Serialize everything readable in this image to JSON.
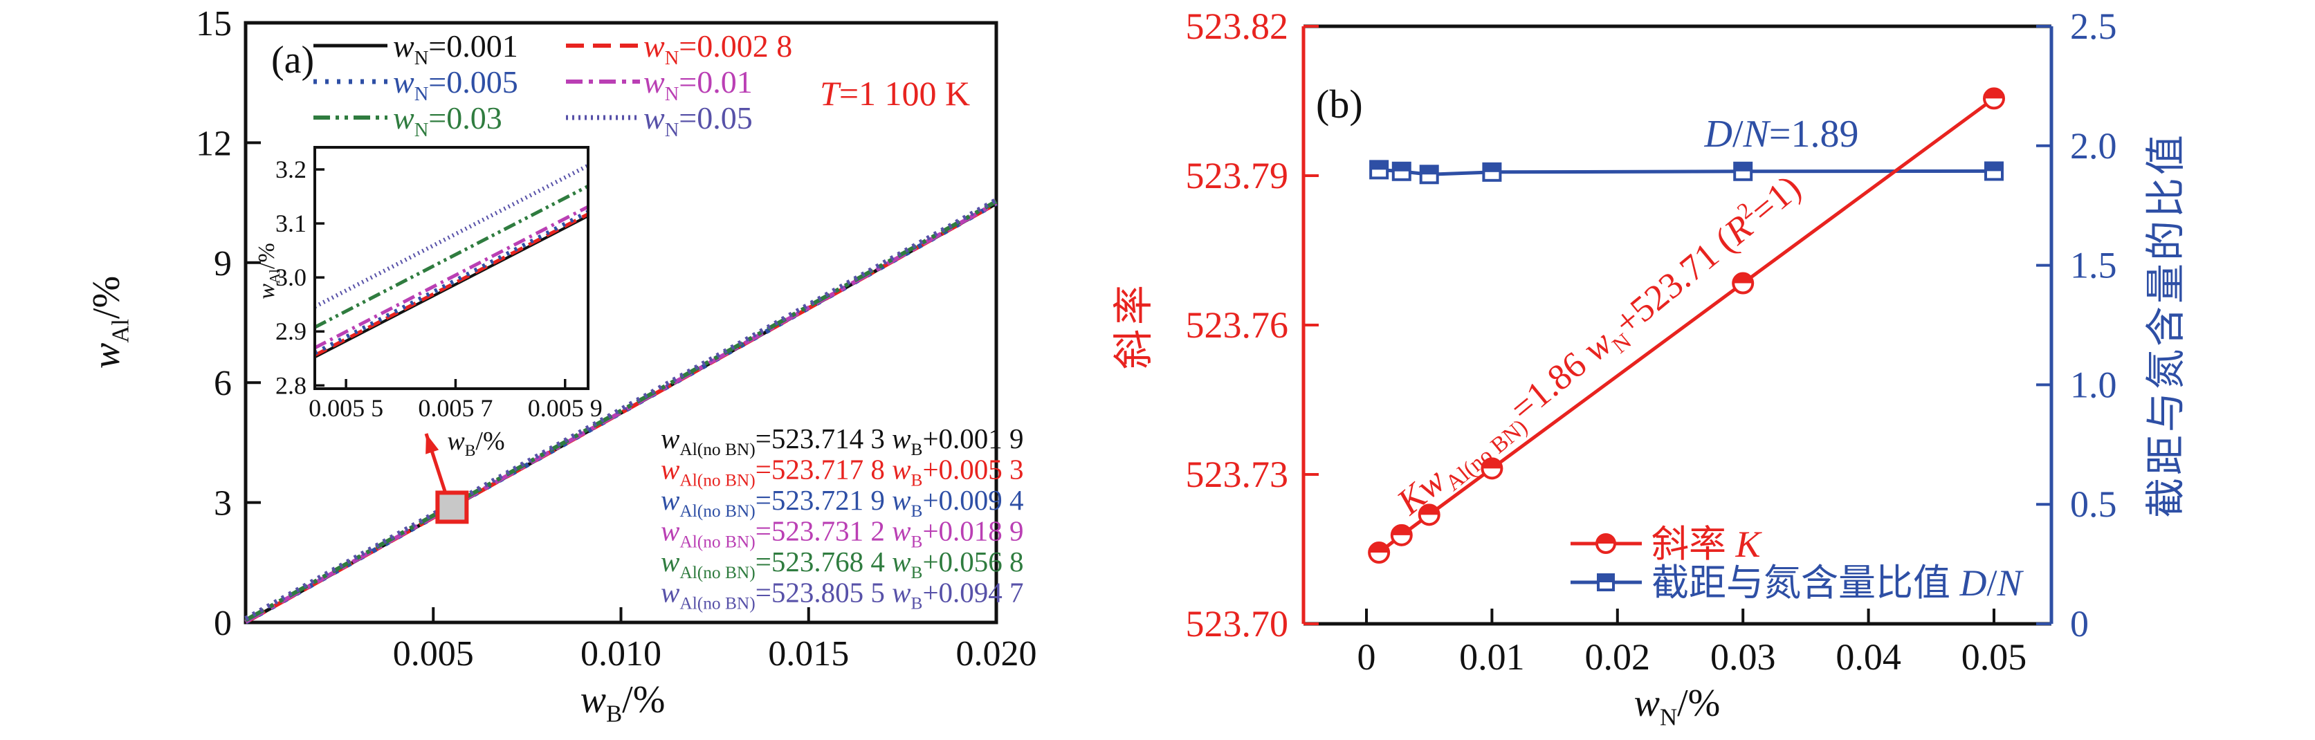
{
  "figure_background": "#ffffff",
  "chart_data": [
    {
      "id": "a",
      "type": "line",
      "panel_label": "(a)",
      "xlabel": "*w*_{B}/%",
      "ylabel": "*w*_{Al}/%",
      "xlim": [
        0,
        0.02
      ],
      "ylim": [
        0,
        15
      ],
      "xticks": [
        {
          "v": 0.005,
          "l": "0.005"
        },
        {
          "v": 0.01,
          "l": "0.010"
        },
        {
          "v": 0.015,
          "l": "0.015"
        },
        {
          "v": 0.02,
          "l": "0.020"
        }
      ],
      "yticks": [
        {
          "v": 0,
          "l": "0"
        },
        {
          "v": 3,
          "l": "3"
        },
        {
          "v": 6,
          "l": "6"
        },
        {
          "v": 9,
          "l": "9"
        },
        {
          "v": 12,
          "l": "12"
        },
        {
          "v": 15,
          "l": "15"
        }
      ],
      "temperature_note": "*T*=1 100 K",
      "temperature_color": "#e8231f",
      "legend_position": "top-left",
      "series": [
        {
          "name": "*w*_{N}=0.001",
          "color": "#111111",
          "dash": "solid",
          "slope": 523.7143,
          "intercept": 0.0019,
          "equation": "*w*_{Al(no BN)}=523.714 3 *w*_{B}+0.001 9"
        },
        {
          "name": "*w*_{N}=0.002 8",
          "color": "#e8231f",
          "dash": "dashed",
          "slope": 523.7178,
          "intercept": 0.0053,
          "equation": "*w*_{Al(no BN)}=523.717 8 *w*_{B}+0.005 3"
        },
        {
          "name": "*w*_{N}=0.005",
          "color": "#2e4fa5",
          "dash": "dotted",
          "slope": 523.7219,
          "intercept": 0.0094,
          "equation": "*w*_{Al(no BN)}=523.721 9 *w*_{B}+0.009 4"
        },
        {
          "name": "*w*_{N}=0.01",
          "color": "#ba3fb4",
          "dash": "dashdot",
          "slope": 523.7312,
          "intercept": 0.0189,
          "equation": "*w*_{Al(no BN)}=523.731 2 *w*_{B}+0.018 9"
        },
        {
          "name": "*w*_{N}=0.03",
          "color": "#2f7c3f",
          "dash": "dashdotdot",
          "slope": 523.7684,
          "intercept": 0.0568,
          "equation": "*w*_{Al(no BN)}=523.768 4 *w*_{B}+0.056 8"
        },
        {
          "name": "*w*_{N}=0.05",
          "color": "#5751a8",
          "dash": "finedot",
          "slope": 523.8055,
          "intercept": 0.0947,
          "equation": "*w*_{Al(no BN)}=523.805 5 *w*_{B}+0.094 7"
        }
      ],
      "inset": {
        "xlabel": "*w*_{B}/%",
        "ylabel": "*w*_{Al}/%",
        "xlim": [
          0.005443,
          0.005942
        ],
        "ylim": [
          2.794,
          3.241
        ],
        "xticks": [
          {
            "v": 0.0055,
            "l": "0.005 5"
          },
          {
            "v": 0.0057,
            "l": "0.005 7"
          },
          {
            "v": 0.0059,
            "l": "0.005 9"
          }
        ],
        "yticks": [
          {
            "v": 2.8,
            "l": "2.8"
          },
          {
            "v": 2.9,
            "l": "2.9"
          },
          {
            "v": 3.0,
            "l": "3.0"
          },
          {
            "v": 3.1,
            "l": "3.1"
          },
          {
            "v": 3.2,
            "l": "3.2"
          }
        ]
      },
      "zoom_marker": {
        "x_value": 0.0055,
        "fill": "#c8c8c8",
        "border": "#e8231f"
      }
    },
    {
      "id": "b",
      "type": "line-dual-axis",
      "panel_label": "(b)",
      "xlabel": "*w*_{N}/%",
      "x": [
        0.001,
        0.0028,
        0.005,
        0.01,
        0.03,
        0.05
      ],
      "xticks": [
        {
          "v": 0,
          "l": "0"
        },
        {
          "v": 0.01,
          "l": "0.01"
        },
        {
          "v": 0.02,
          "l": "0.02"
        },
        {
          "v": 0.03,
          "l": "0.03"
        },
        {
          "v": 0.04,
          "l": "0.04"
        },
        {
          "v": 0.05,
          "l": "0.05"
        }
      ],
      "left_axis": {
        "label": "斜率",
        "color": "#e8231f",
        "lim": [
          523.7,
          523.82
        ],
        "ticks": [
          {
            "v": 523.7,
            "l": "523.70"
          },
          {
            "v": 523.73,
            "l": "523.73"
          },
          {
            "v": 523.76,
            "l": "523.76"
          },
          {
            "v": 523.79,
            "l": "523.79"
          },
          {
            "v": 523.82,
            "l": "523.82"
          }
        ]
      },
      "right_axis": {
        "label": "截距与氮含量的比值",
        "color": "#2e4fa5",
        "lim": [
          0,
          2.5
        ],
        "ticks": [
          {
            "v": 0,
            "l": "0"
          },
          {
            "v": 0.5,
            "l": "0.5"
          },
          {
            "v": 1.0,
            "l": "1.0"
          },
          {
            "v": 1.5,
            "l": "1.5"
          },
          {
            "v": 2.0,
            "l": "2.0"
          },
          {
            "v": 2.5,
            "l": "2.5"
          }
        ]
      },
      "series": [
        {
          "name": "斜率 *K*",
          "axis": "left",
          "color": "#e8231f",
          "marker": "half-circle",
          "values": [
            523.7143,
            523.7178,
            523.7219,
            523.7312,
            523.7684,
            523.8055
          ]
        },
        {
          "name": "截距与氮含量比值 *D*/*N*",
          "axis": "right",
          "color": "#2e4fa5",
          "marker": "half-square",
          "values": [
            1.9,
            1.893,
            1.88,
            1.89,
            1.893,
            1.894
          ]
        }
      ],
      "annotations": [
        {
          "id": "fit-equation",
          "text": "*Kw*_{Al(no BN)}=1.86 *w*_{N}+523.71 (*R*^{2}=1)",
          "color": "#e8231f",
          "rotate": -39.5
        },
        {
          "id": "dn-value",
          "text": "*D*/*N*=1.89",
          "color": "#2e4fa5",
          "rotate": 0
        }
      ],
      "legend_position": "lower-right"
    }
  ]
}
